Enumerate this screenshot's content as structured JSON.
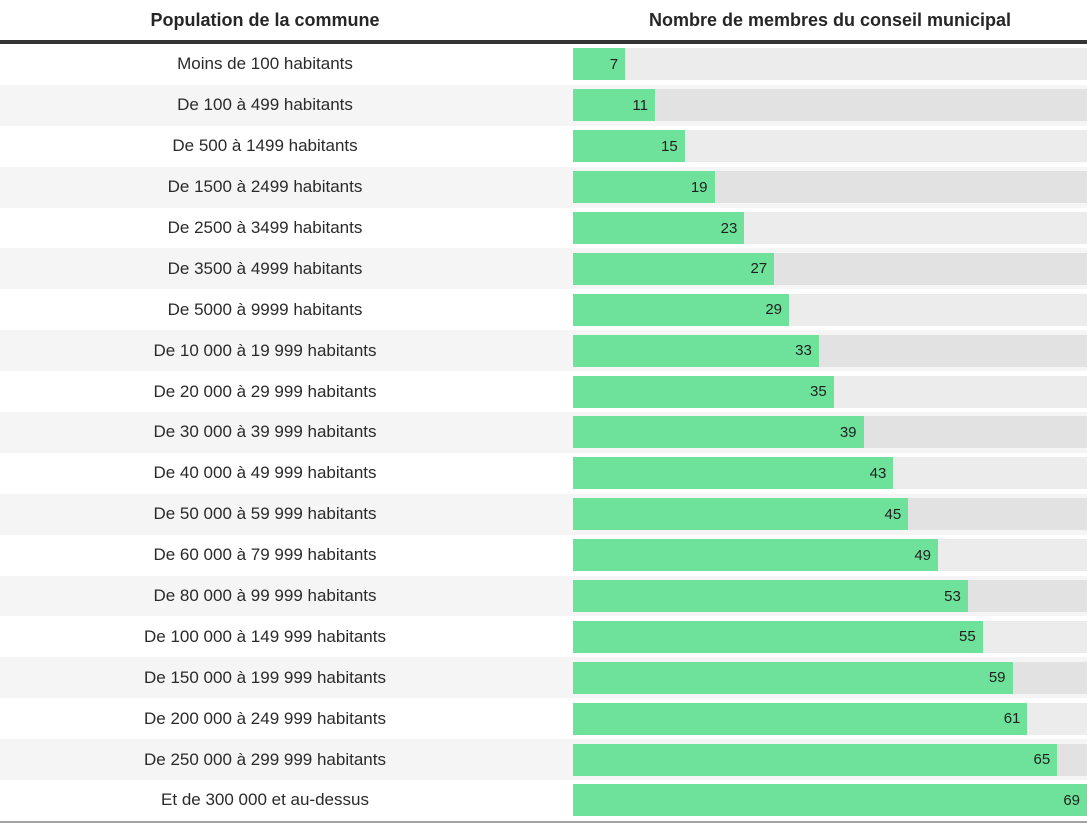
{
  "table": {
    "columns": [
      "Population de la commune",
      "Nombre de membres du conseil municipal"
    ]
  },
  "chart_data": {
    "type": "bar",
    "orientation": "horizontal",
    "title": "",
    "category_axis_label": "Population de la commune",
    "value_axis_label": "Nombre de membres du conseil municipal",
    "categories": [
      "Moins de 100 habitants",
      "De 100 à 499 habitants",
      "De 500 à 1499 habitants",
      "De 1500 à 2499 habitants",
      "De 2500 à 3499 habitants",
      "De 3500 à 4999 habitants",
      "De 5000 à 9999 habitants",
      "De 10 000 à 19 999 habitants",
      "De 20 000 à 29 999 habitants",
      "De 30 000 à 39 999 habitants",
      "De 40 000 à 49 999 habitants",
      "De 50 000 à 59 999 habitants",
      "De 60 000 à 79 999 habitants",
      "De 80 000 à 99 999 habitants",
      "De 100 000 à 149 999 habitants",
      "De 150 000 à 199 999 habitants",
      "De 200 000 à 249 999 habitants",
      "De 250 000 à 299 999 habitants",
      "Et de 300 000 et au-dessus"
    ],
    "values": [
      7,
      11,
      15,
      19,
      23,
      27,
      29,
      33,
      35,
      39,
      43,
      45,
      49,
      53,
      55,
      59,
      61,
      65,
      69
    ],
    "xlim": [
      0,
      69
    ],
    "grid": false,
    "legend": "none",
    "value_labels_position": "inside-end",
    "bar_color": "#6ee29a",
    "track_color": "rgba(0,0,0,0.075)",
    "alt_row_color": "#f5f5f5",
    "header_rule_color": "#343434",
    "bottom_rule_color": "#a3a3a3"
  }
}
